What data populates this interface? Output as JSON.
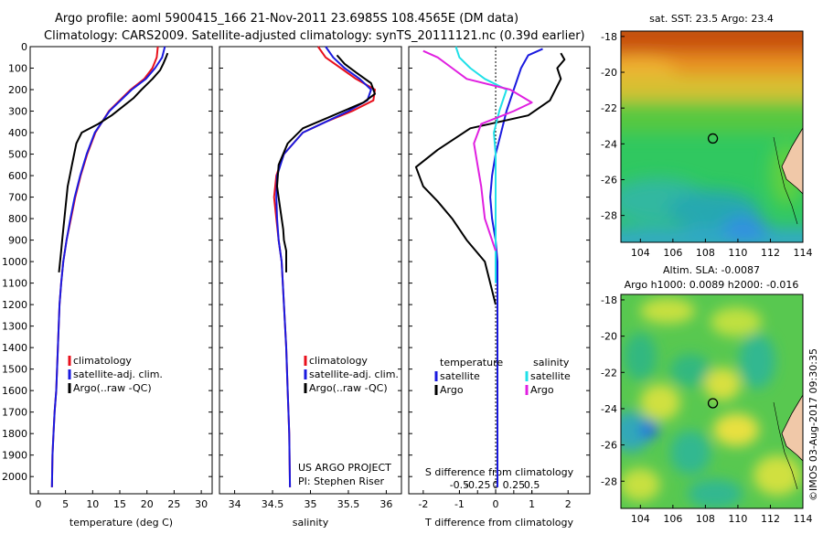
{
  "header": {
    "line1": "Argo profile: aoml 5900415_166 21-Nov-2011 23.6985S 108.4565E (DM data)",
    "line2": "Climatology: CARS2009. Satellite-adjusted climatology: synTS_20111121.nc (0.39d earlier)"
  },
  "colors": {
    "clim": "#e8101c",
    "sat": "#1a1adf",
    "argo": "#000000",
    "sal_sat": "#20e0e8",
    "sal_argo": "#e020e0"
  },
  "depth_axis": {
    "ticks": [
      0,
      100,
      200,
      300,
      400,
      500,
      600,
      700,
      800,
      900,
      1000,
      1100,
      1200,
      1300,
      1400,
      1500,
      1600,
      1700,
      1800,
      1900,
      2000
    ],
    "labels": [
      "0",
      "100",
      "200",
      "300",
      "400",
      "500",
      "600",
      "700",
      "800",
      "900",
      "1000",
      "1100",
      "1200",
      "1300",
      "1400",
      "1500",
      "1600",
      "1700",
      "1800",
      "1900",
      "2000"
    ]
  },
  "chart_data": [
    {
      "type": "line",
      "name": "temperature-profile",
      "xlabel": "temperature (deg C)",
      "xlim": [
        -1.5,
        32
      ],
      "ylim": [
        2080,
        0
      ],
      "xticks": [
        0,
        5,
        10,
        15,
        20,
        25,
        30
      ],
      "xtick_labels": [
        "0",
        "5",
        "10",
        "15",
        "20",
        "25",
        "30"
      ],
      "legend": [
        "climatology",
        "satellite-adj. clim.",
        "Argo(..raw -QC)"
      ],
      "series": [
        {
          "name": "climatology",
          "color": "#e8101c",
          "x": [
            22.0,
            21.8,
            21.0,
            19.5,
            17.0,
            13.0,
            10.5,
            9.0,
            7.8,
            6.8,
            6.0,
            5.2,
            4.6,
            4.2,
            3.9,
            3.6,
            3.3,
            3.0,
            2.8,
            2.6,
            2.5
          ],
          "depth": [
            0,
            50,
            100,
            150,
            200,
            300,
            400,
            500,
            600,
            700,
            800,
            900,
            1000,
            1100,
            1200,
            1400,
            1600,
            1700,
            1800,
            1900,
            2050
          ]
        },
        {
          "name": "satellite-adj. clim.",
          "color": "#1a1adf",
          "x": [
            23.3,
            22.8,
            21.5,
            19.8,
            17.2,
            13.1,
            10.4,
            8.9,
            7.7,
            6.7,
            5.9,
            5.2,
            4.6,
            4.2,
            3.9,
            3.6,
            3.3,
            3.0,
            2.8,
            2.6,
            2.5
          ],
          "depth": [
            0,
            50,
            100,
            150,
            200,
            300,
            400,
            500,
            600,
            700,
            800,
            900,
            1000,
            1100,
            1200,
            1400,
            1600,
            1700,
            1800,
            1900,
            2050
          ]
        },
        {
          "name": "Argo",
          "color": "#000000",
          "x": [
            23.8,
            23.5,
            23.0,
            22.4,
            21.0,
            19.0,
            17.5,
            15.5,
            13.5,
            11.0,
            8.0,
            7.0,
            6.6,
            6.2,
            5.8,
            5.4,
            5.2,
            5.0,
            4.8,
            4.6,
            4.4,
            4.2,
            4.0,
            3.8
          ],
          "depth": [
            30,
            50,
            80,
            110,
            150,
            200,
            240,
            280,
            320,
            360,
            400,
            450,
            500,
            550,
            600,
            650,
            700,
            750,
            800,
            850,
            900,
            950,
            1000,
            1050
          ]
        }
      ]
    },
    {
      "type": "line",
      "name": "salinity-profile",
      "xlabel": "salinity",
      "xlim": [
        33.8,
        36.2
      ],
      "ylim": [
        2080,
        0
      ],
      "xticks": [
        34,
        34.5,
        35,
        35.5,
        36
      ],
      "xtick_labels": [
        "34",
        "34.5",
        "35",
        "35.5",
        "36"
      ],
      "legend": [
        "climatology",
        "satellite-adj. clim.",
        "Argo(..raw -QC)"
      ],
      "annotations": [
        "US ARGO PROJECT",
        "PI: Stephen Riser"
      ],
      "series": [
        {
          "name": "climatology",
          "color": "#e8101c",
          "x": [
            35.1,
            35.2,
            35.4,
            35.6,
            35.85,
            35.83,
            35.55,
            35.2,
            34.9,
            34.65,
            34.55,
            34.52,
            34.55,
            34.58,
            34.62,
            34.65,
            34.68,
            34.7,
            34.72,
            34.73
          ],
          "depth": [
            0,
            50,
            100,
            150,
            200,
            250,
            300,
            350,
            400,
            500,
            600,
            700,
            800,
            900,
            1000,
            1200,
            1400,
            1600,
            1800,
            2050
          ]
        },
        {
          "name": "satellite-adj. clim.",
          "color": "#1a1adf",
          "x": [
            35.2,
            35.3,
            35.45,
            35.65,
            35.8,
            35.75,
            35.5,
            35.2,
            34.9,
            34.65,
            34.56,
            34.55,
            34.56,
            34.58,
            34.62,
            34.65,
            34.68,
            34.7,
            34.72,
            34.73
          ],
          "depth": [
            0,
            50,
            100,
            150,
            200,
            250,
            300,
            350,
            400,
            500,
            600,
            700,
            800,
            900,
            1000,
            1200,
            1400,
            1600,
            1800,
            2050
          ]
        },
        {
          "name": "Argo",
          "color": "#000000",
          "x": [
            35.35,
            35.45,
            35.6,
            35.8,
            35.85,
            35.7,
            35.3,
            34.9,
            34.7,
            34.58,
            34.56,
            34.6,
            34.64,
            34.65,
            34.68,
            34.68
          ],
          "depth": [
            40,
            80,
            120,
            170,
            220,
            260,
            320,
            380,
            450,
            550,
            650,
            750,
            850,
            900,
            950,
            1050
          ]
        }
      ]
    },
    {
      "type": "line",
      "name": "difference-profile",
      "xlabel": "T difference from climatology",
      "top_label": "S difference from climatology",
      "xlim": [
        -2.4,
        2.6
      ],
      "ylim": [
        2080,
        0
      ],
      "xticks": [
        -2,
        -1,
        0,
        1,
        2
      ],
      "xtick_labels": [
        "-2",
        "-1",
        "0",
        "1",
        "2"
      ],
      "sticks": [
        -1,
        -0.5,
        0,
        0.5,
        1
      ],
      "stick_labels": [
        "-0.5",
        "-0.25",
        "0",
        "0.25",
        "0.5"
      ],
      "legend_titles": [
        "temperature",
        "salinity"
      ],
      "legend": [
        "satellite",
        "Argo",
        "satellite",
        "Argo"
      ],
      "series": [
        {
          "name": "T satellite",
          "color": "#1a1adf",
          "x": [
            1.3,
            0.9,
            0.7,
            0.5,
            0.3,
            0.15,
            0.0,
            -0.1,
            -0.15,
            -0.1,
            0.0,
            0.05,
            0.05,
            0.05,
            0.05,
            0.05,
            0.05
          ],
          "depth": [
            10,
            40,
            100,
            200,
            300,
            400,
            500,
            600,
            700,
            800,
            900,
            1000,
            1200,
            1400,
            1600,
            1800,
            2050
          ]
        },
        {
          "name": "T Argo",
          "color": "#000000",
          "x": [
            1.8,
            1.9,
            1.7,
            1.8,
            1.5,
            0.9,
            -0.7,
            -1.6,
            -2.2,
            -2.0,
            -1.6,
            -1.2,
            -0.8,
            -0.3,
            0.0
          ],
          "depth": [
            30,
            60,
            100,
            150,
            250,
            320,
            380,
            480,
            560,
            650,
            720,
            800,
            900,
            1000,
            1200
          ]
        },
        {
          "name": "S satellite",
          "color": "#20e0e8",
          "x": [
            -1.1,
            -1.0,
            -0.7,
            -0.3,
            0.3,
            0.1,
            -0.05,
            0.0,
            0.0,
            0.0,
            0.0
          ],
          "depth": [
            0,
            50,
            100,
            150,
            200,
            300,
            400,
            500,
            700,
            900,
            1100
          ]
        },
        {
          "name": "S Argo",
          "color": "#e020e0",
          "x": [
            -2.0,
            -1.6,
            -1.2,
            -0.8,
            0.4,
            1.0,
            0.5,
            -0.4,
            -0.6,
            -0.5,
            -0.4,
            -0.3,
            0.0
          ],
          "depth": [
            20,
            50,
            100,
            150,
            200,
            260,
            300,
            360,
            450,
            550,
            650,
            800,
            950
          ]
        }
      ]
    },
    {
      "type": "heatmap",
      "name": "sst-map",
      "title": "sat. SST: 23.5 Argo: 23.4",
      "xlim": [
        102.8,
        114
      ],
      "ylim": [
        -29.5,
        -17.7
      ],
      "xticks": [
        104,
        106,
        108,
        110,
        112,
        114
      ],
      "xtick_labels": [
        "104",
        "106",
        "108",
        "110",
        "112",
        "114"
      ],
      "yticks": [
        -18,
        -20,
        -22,
        -24,
        -26,
        -28
      ],
      "ytick_labels": [
        "-18",
        "-20",
        "-22",
        "-24",
        "-26",
        "-28"
      ],
      "marker": {
        "lon": 108.46,
        "lat": -23.7
      }
    },
    {
      "type": "heatmap",
      "name": "sla-map",
      "title": "Altim. SLA: -0.0087",
      "subtitle": "Argo h1000: 0.0089 h2000: -0.016",
      "xlim": [
        102.8,
        114
      ],
      "ylim": [
        -29.5,
        -17.7
      ],
      "xticks": [
        104,
        106,
        108,
        110,
        112,
        114
      ],
      "xtick_labels": [
        "104",
        "106",
        "108",
        "110",
        "112",
        "114"
      ],
      "yticks": [
        -18,
        -20,
        -22,
        -24,
        -26,
        -28
      ],
      "ytick_labels": [
        "-18",
        "-20",
        "-22",
        "-24",
        "-26",
        "-28"
      ],
      "marker": {
        "lon": 108.46,
        "lat": -23.7
      }
    }
  ],
  "watermark": "©IMOS 03-Aug-2017 09:30:35"
}
